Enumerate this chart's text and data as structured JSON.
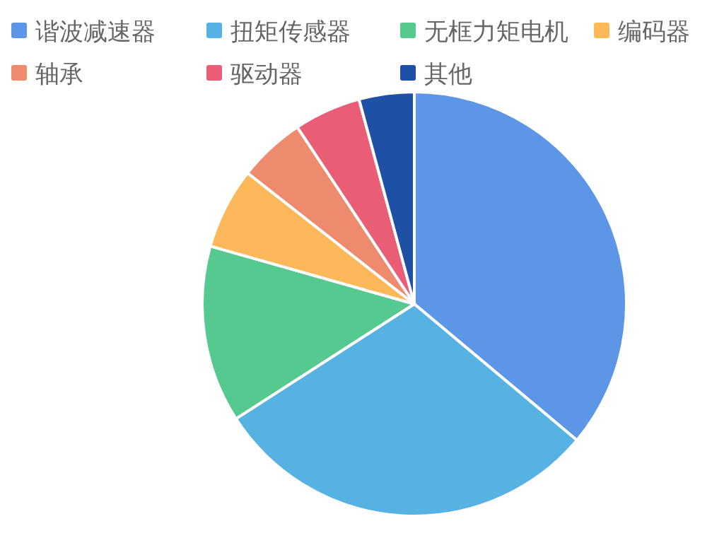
{
  "chart_data": {
    "type": "pie",
    "legend": "top",
    "categories": [
      "谐波减速器",
      "扭矩传感器",
      "无框力矩电机",
      "编码器",
      "轴承",
      "驱动器",
      "其他"
    ],
    "values": [
      36.1,
      29.8,
      13.5,
      6.2,
      5.1,
      5.1,
      4.2
    ],
    "colors": [
      "#5d96e6",
      "#55b2e2",
      "#55c98f",
      "#fdb85a",
      "#ee8a6e",
      "#e95e76",
      "#1e50a6"
    ]
  }
}
